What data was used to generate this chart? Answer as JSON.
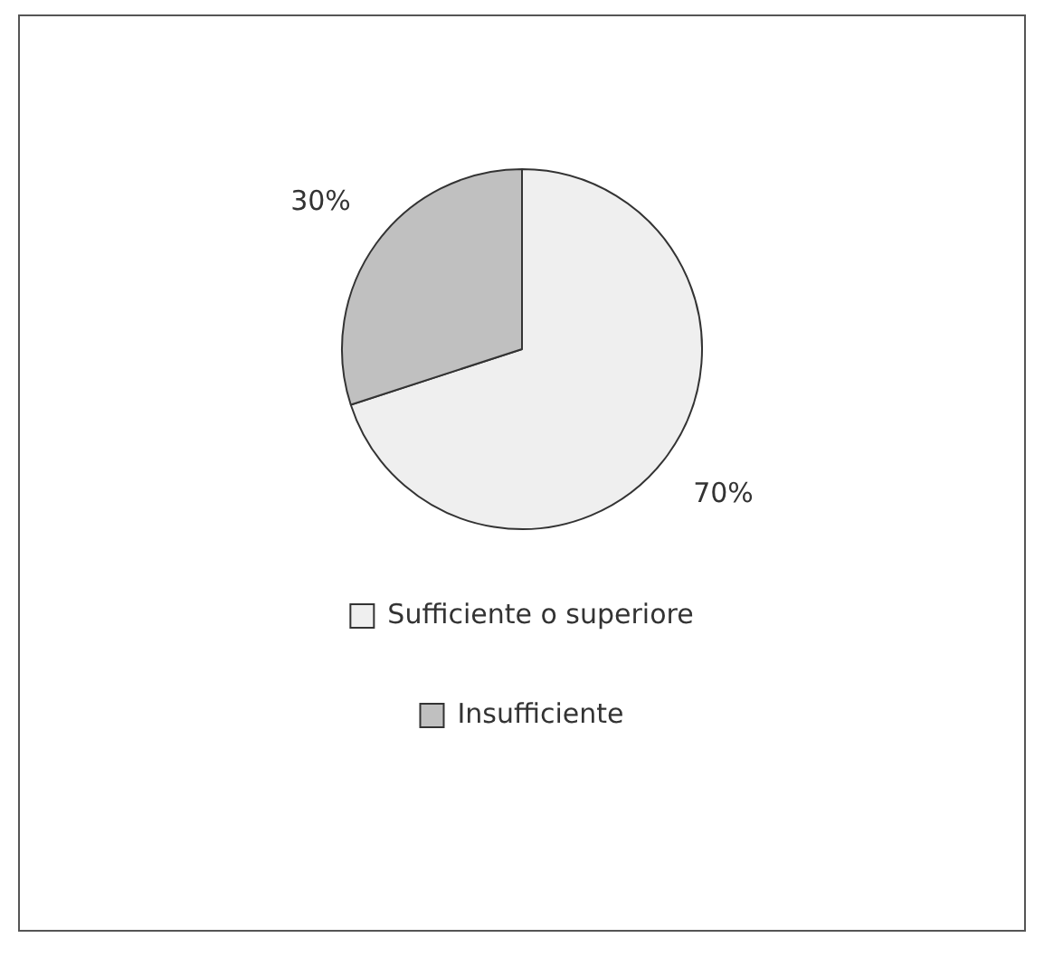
{
  "chart_data": {
    "type": "pie",
    "categories": [
      "Sufficiente o superiore",
      "Insufficiente"
    ],
    "values": [
      70,
      30
    ],
    "colors": [
      "#efefef",
      "#c0c0c0"
    ],
    "value_labels": [
      "70%",
      "30%"
    ],
    "legend": "bottom"
  }
}
